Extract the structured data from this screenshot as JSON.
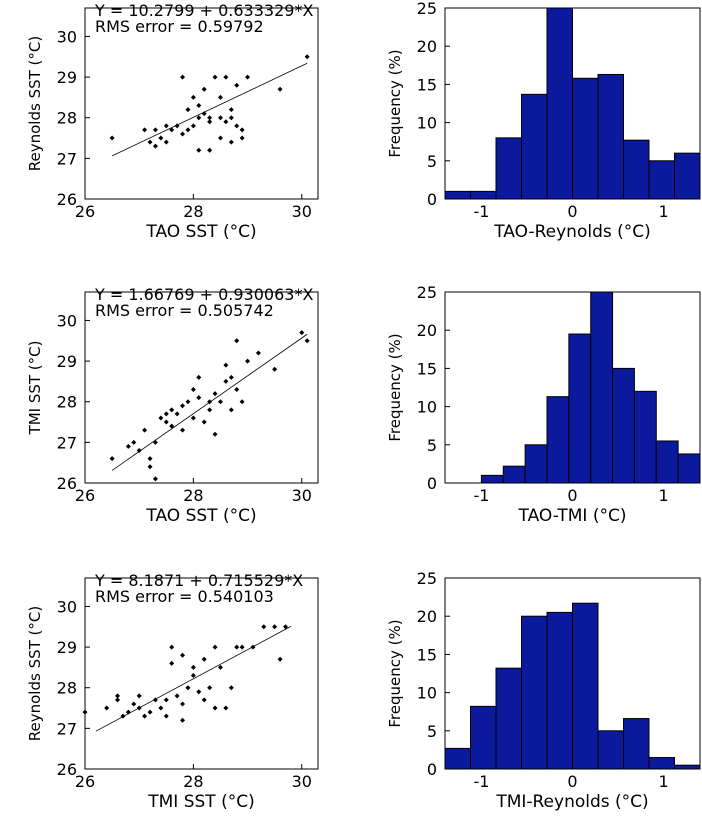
{
  "chart_data": [
    {
      "type": "scatter",
      "xlabel": "TAO SST (°C)",
      "ylabel": "Reynolds SST (°C)",
      "annotations": [
        "Y = 10.2799 + 0.633329*X",
        "RMS error = 0.59792"
      ],
      "xlim": [
        26,
        30.3
      ],
      "ylim": [
        26,
        30.7
      ],
      "xticks": [
        26,
        28,
        30
      ],
      "yticks": [
        26,
        27,
        28,
        29,
        30
      ],
      "color": "#000000",
      "x": [
        26.5,
        27.1,
        27.2,
        27.3,
        27.4,
        27.5,
        27.6,
        27.8,
        27.9,
        28.0,
        28.1,
        28.2,
        28.3,
        28.5,
        28.6,
        28.7,
        28.8,
        28.9,
        27.3,
        27.5,
        27.7,
        27.9,
        28.1,
        28.3,
        28.5,
        28.7,
        27.8,
        28.0,
        28.2,
        28.4,
        28.6,
        28.8,
        29.0,
        28.1,
        28.3,
        28.5,
        28.7,
        28.9,
        29.6,
        30.1
      ],
      "values": [
        27.5,
        27.7,
        27.4,
        27.7,
        27.5,
        27.8,
        27.7,
        27.6,
        27.7,
        27.8,
        28.0,
        28.1,
        27.9,
        28.0,
        27.9,
        28.0,
        27.8,
        27.5,
        27.3,
        27.4,
        27.8,
        28.2,
        28.3,
        28.0,
        28.5,
        28.2,
        29.0,
        28.5,
        28.7,
        29.0,
        29.0,
        28.8,
        29.0,
        27.2,
        27.2,
        27.5,
        27.4,
        27.7,
        28.7,
        29.5
      ],
      "fit_line": {
        "x": [
          26.5,
          30.1
        ],
        "values": [
          27.06,
          29.34
        ]
      }
    },
    {
      "type": "histogram",
      "xlabel": "TAO-Reynolds (°C)",
      "ylabel": "Frequency (%)",
      "xlim": [
        -1.4,
        1.4
      ],
      "ylim": [
        0,
        25
      ],
      "xticks": [
        -1,
        0,
        1
      ],
      "yticks": [
        0,
        5,
        10,
        15,
        20,
        25
      ],
      "color": "#0b1a9c",
      "bins": [
        -1.4,
        -1.12,
        -0.84,
        -0.56,
        -0.28,
        0,
        0.28,
        0.56,
        0.84,
        1.12,
        1.4
      ],
      "values": [
        1,
        1,
        8,
        13.7,
        25,
        15.8,
        16.3,
        7.7,
        5,
        6
      ]
    },
    {
      "type": "scatter",
      "xlabel": "TAO SST (°C)",
      "ylabel": "TMI SST (°C)",
      "annotations": [
        "Y = 1.66769 + 0.930063*X",
        "RMS error = 0.505742"
      ],
      "xlim": [
        26,
        30.3
      ],
      "ylim": [
        26,
        30.7
      ],
      "xticks": [
        26,
        28,
        30
      ],
      "yticks": [
        26,
        27,
        28,
        29,
        30
      ],
      "color": "#000000",
      "x": [
        26.5,
        26.8,
        27.0,
        27.1,
        27.2,
        27.3,
        27.3,
        27.4,
        27.5,
        27.6,
        27.6,
        27.7,
        27.8,
        27.9,
        28.0,
        28.0,
        28.1,
        28.2,
        28.3,
        28.4,
        28.5,
        28.6,
        28.7,
        28.8,
        28.9,
        29.0,
        29.2,
        29.5,
        30.0,
        30.1,
        27.2,
        27.5,
        27.8,
        28.1,
        28.4,
        28.7,
        28.6,
        28.3,
        28.8,
        26.9
      ],
      "values": [
        26.6,
        26.9,
        26.8,
        27.3,
        26.6,
        26.1,
        27.0,
        27.6,
        27.5,
        27.4,
        27.8,
        27.7,
        27.9,
        28.0,
        27.6,
        28.3,
        28.1,
        27.5,
        27.8,
        28.2,
        28.0,
        28.5,
        28.6,
        28.3,
        28.0,
        29.0,
        29.2,
        28.8,
        29.7,
        29.5,
        26.4,
        27.7,
        27.3,
        28.6,
        27.2,
        27.8,
        28.9,
        28.0,
        29.5,
        27.0
      ],
      "fit_line": {
        "x": [
          26.5,
          30.1
        ],
        "values": [
          26.31,
          29.66
        ]
      }
    },
    {
      "type": "histogram",
      "xlabel": "TAO-TMI  (°C)",
      "ylabel": "Frequency (%)",
      "xlim": [
        -1.4,
        1.4
      ],
      "ylim": [
        0,
        25
      ],
      "xticks": [
        -1,
        0,
        1
      ],
      "yticks": [
        0,
        5,
        10,
        15,
        20,
        25
      ],
      "color": "#0b1a9c",
      "bins": [
        -1.0,
        -0.76,
        -0.52,
        -0.28,
        -0.04,
        0.2,
        0.44,
        0.68,
        0.92,
        1.16,
        1.4
      ],
      "values": [
        1,
        2.2,
        5,
        11.3,
        19.5,
        25,
        15,
        12,
        5.5,
        3.8
      ]
    },
    {
      "type": "scatter",
      "xlabel": "TMI SST (°C)",
      "ylabel": "Reynolds SST (°C)",
      "annotations": [
        "Y = 8.1871 + 0.715529*X",
        "RMS error = 0.540103"
      ],
      "xlim": [
        26,
        30.3
      ],
      "ylim": [
        26,
        30.7
      ],
      "xticks": [
        26,
        28,
        30
      ],
      "yticks": [
        26,
        27,
        28,
        29,
        30
      ],
      "color": "#000000",
      "x": [
        26.0,
        26.4,
        26.6,
        26.7,
        26.8,
        26.9,
        27.0,
        27.1,
        27.2,
        27.3,
        27.4,
        27.5,
        27.6,
        27.7,
        27.8,
        27.9,
        28.0,
        28.1,
        28.2,
        28.3,
        28.4,
        28.5,
        28.7,
        28.9,
        29.1,
        29.3,
        29.5,
        29.7,
        27.6,
        27.8,
        28.0,
        28.2,
        28.4,
        27.5,
        27.8,
        28.6,
        28.8,
        26.6,
        27.0,
        29.6
      ],
      "values": [
        27.4,
        27.5,
        27.8,
        27.3,
        27.4,
        27.6,
        27.8,
        27.3,
        27.4,
        27.7,
        27.5,
        27.7,
        28.6,
        27.8,
        27.6,
        28.0,
        28.3,
        27.9,
        27.7,
        28.0,
        29.0,
        28.5,
        28.0,
        29.0,
        29.0,
        29.5,
        29.5,
        29.5,
        29.0,
        28.8,
        28.5,
        28.7,
        27.5,
        27.3,
        27.2,
        27.5,
        29.0,
        27.7,
        27.5,
        28.7
      ],
      "fit_line": {
        "x": [
          26.2,
          29.8
        ],
        "values": [
          26.93,
          29.51
        ]
      }
    },
    {
      "type": "histogram",
      "xlabel": "TMI-Reynolds  (°C)",
      "ylabel": "Frequency (%)",
      "xlim": [
        -1.4,
        1.4
      ],
      "ylim": [
        0,
        25
      ],
      "xticks": [
        -1,
        0,
        1
      ],
      "yticks": [
        0,
        5,
        10,
        15,
        20,
        25
      ],
      "color": "#0b1a9c",
      "bins": [
        -1.4,
        -1.12,
        -0.84,
        -0.56,
        -0.28,
        0,
        0.28,
        0.56,
        0.84,
        1.12,
        1.4
      ],
      "values": [
        2.7,
        8.2,
        13.2,
        20,
        20.5,
        21.7,
        5,
        6.6,
        1.5,
        0.5
      ]
    }
  ]
}
